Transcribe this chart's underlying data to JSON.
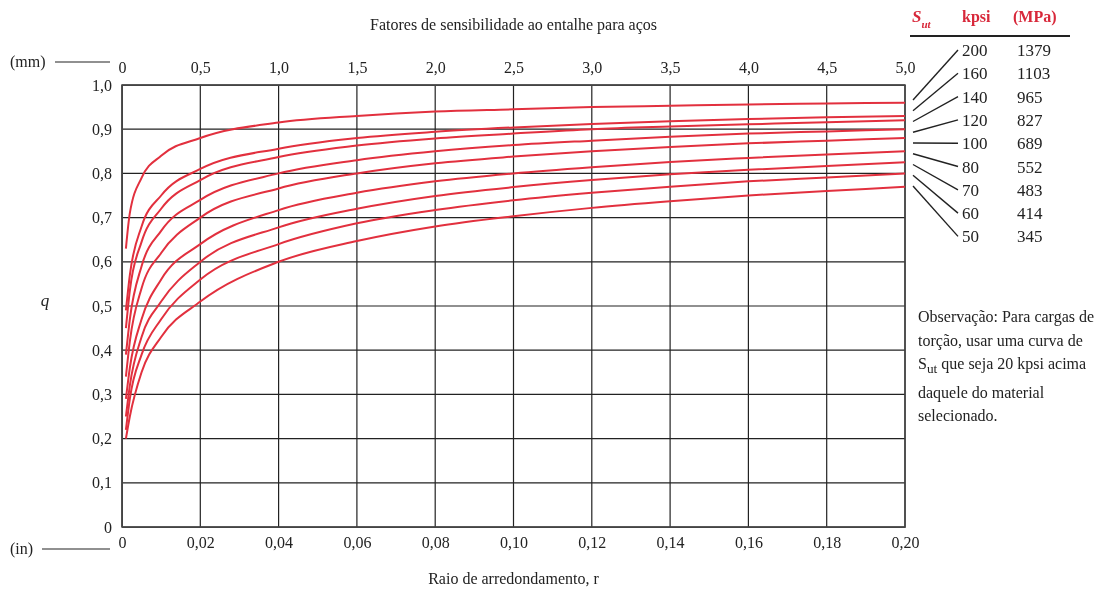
{
  "chart_data": {
    "type": "line",
    "title": "Fatores de sensibilidade ao entalhe para aços",
    "xlabel": "Raio de arredondamento, r",
    "ylabel": "q",
    "x2label": "(mm)",
    "legend_title": "S$_{ut}$",
    "legend": "right",
    "grid": true,
    "marker": "none",
    "line_style": "solid",
    "x": [
      0.001,
      0.002,
      0.005,
      0.01,
      0.02,
      0.04,
      0.06,
      0.08,
      0.1,
      0.12,
      0.14,
      0.16,
      0.18,
      0.2
    ],
    "xlim": [
      0,
      0.2
    ],
    "xticks": [
      0,
      {
        "value": 0.02,
        "label": "0,02"
      },
      {
        "value": 0.04,
        "label": "0,04"
      },
      {
        "value": 0.06,
        "label": "0,06"
      },
      {
        "value": 0.08,
        "label": "0,08"
      },
      {
        "value": 0.1,
        "label": "0,10"
      },
      {
        "value": 0.12,
        "label": "0,12"
      },
      {
        "value": 0.14,
        "label": "0,14"
      },
      {
        "value": 0.16,
        "label": "0,16"
      },
      {
        "value": 0.18,
        "label": "0,18"
      },
      {
        "value": 0.2,
        "label": "0,20"
      }
    ],
    "x2lim": [
      0,
      5
    ],
    "x2ticks": [
      0,
      {
        "value": 0.5,
        "label": "0,5"
      },
      {
        "value": 1,
        "label": "1,0"
      },
      {
        "value": 1.5,
        "label": "1,5"
      },
      {
        "value": 2,
        "label": "2,0"
      },
      {
        "value": 2.5,
        "label": "2,5"
      },
      {
        "value": 3,
        "label": "3,0"
      },
      {
        "value": 3.5,
        "label": "3,5"
      },
      {
        "value": 4,
        "label": "4,0"
      },
      {
        "value": 4.5,
        "label": "4,5"
      },
      {
        "value": 5,
        "label": "5,0"
      }
    ],
    "ylim": [
      0,
      1
    ],
    "yticks": [
      0,
      {
        "value": 0.1,
        "label": "0,1"
      },
      {
        "value": 0.2,
        "label": "0,2"
      },
      {
        "value": 0.3,
        "label": "0,3"
      },
      {
        "value": 0.4,
        "label": "0,4"
      },
      {
        "value": 0.5,
        "label": "0,5"
      },
      {
        "value": 0.6,
        "label": "0,6"
      },
      {
        "value": 0.7,
        "label": "0,7"
      },
      {
        "value": 0.8,
        "label": "0,8"
      },
      {
        "value": 0.9,
        "label": "0,9"
      },
      {
        "value": 1,
        "label": "1,0"
      }
    ],
    "series": [
      {
        "name": "200",
        "color": "#e2303e",
        "values": [
          0.63,
          0.71,
          0.79,
          0.84,
          0.88,
          0.915,
          0.93,
          0.94,
          0.945,
          0.95,
          0.953,
          0.956,
          0.958,
          0.96
        ]
      },
      {
        "name": "160",
        "color": "#e2303e",
        "values": [
          0.49,
          0.57,
          0.68,
          0.75,
          0.81,
          0.856,
          0.88,
          0.894,
          0.904,
          0.912,
          0.918,
          0.923,
          0.927,
          0.93
        ]
      },
      {
        "name": "140",
        "color": "#e2303e",
        "values": [
          0.45,
          0.535,
          0.645,
          0.72,
          0.785,
          0.837,
          0.863,
          0.879,
          0.89,
          0.9,
          0.906,
          0.911,
          0.916,
          0.92
        ]
      },
      {
        "name": "120",
        "color": "#e2303e",
        "values": [
          0.39,
          0.47,
          0.59,
          0.67,
          0.74,
          0.8,
          0.83,
          0.85,
          0.864,
          0.874,
          0.883,
          0.89,
          0.895,
          0.9
        ]
      },
      {
        "name": "100",
        "color": "#e2303e",
        "values": [
          0.34,
          0.42,
          0.54,
          0.62,
          0.7,
          0.766,
          0.8,
          0.823,
          0.838,
          0.85,
          0.86,
          0.868,
          0.874,
          0.88
        ]
      },
      {
        "name": "80",
        "color": "#e2303e",
        "values": [
          0.29,
          0.36,
          0.47,
          0.56,
          0.64,
          0.717,
          0.756,
          0.782,
          0.8,
          0.814,
          0.826,
          0.835,
          0.843,
          0.85
        ]
      },
      {
        "name": "70",
        "color": "#e2303e",
        "values": [
          0.25,
          0.32,
          0.43,
          0.51,
          0.6,
          0.678,
          0.72,
          0.749,
          0.769,
          0.785,
          0.798,
          0.808,
          0.817,
          0.825
        ]
      },
      {
        "name": "60",
        "color": "#e2303e",
        "values": [
          0.22,
          0.29,
          0.39,
          0.47,
          0.56,
          0.64,
          0.687,
          0.717,
          0.739,
          0.756,
          0.77,
          0.782,
          0.791,
          0.8
        ]
      },
      {
        "name": "50",
        "color": "#e2303e",
        "values": [
          0.2,
          0.25,
          0.35,
          0.43,
          0.51,
          0.6,
          0.647,
          0.68,
          0.703,
          0.722,
          0.737,
          0.75,
          0.76,
          0.77
        ]
      }
    ],
    "annotations": [
      "(in)",
      "kpsi",
      "(MPa)",
      "1379",
      "1103",
      "965",
      "827",
      "689",
      "552",
      "483",
      "414",
      "345",
      "Observação: Para cargas de torção, usar uma curva de S$_{ut}$ que seja 20 kpsi acima daquele do material selecionado."
    ]
  }
}
